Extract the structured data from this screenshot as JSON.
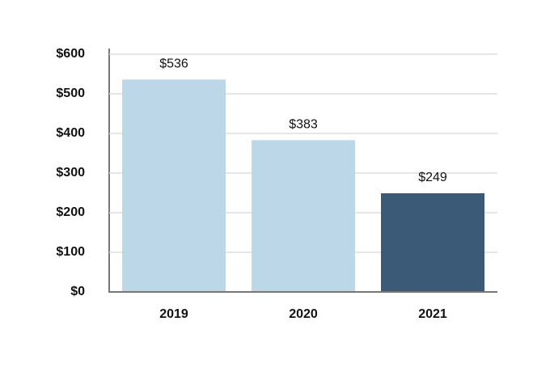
{
  "chart_data": {
    "type": "bar",
    "categories": [
      "2019",
      "2020",
      "2021"
    ],
    "values": [
      536,
      383,
      249
    ],
    "value_labels": [
      "$536",
      "$383",
      "$249"
    ],
    "colors": [
      "#bcd7e8",
      "#bcd7e8",
      "#3b5a78"
    ],
    "ylim": [
      0,
      600
    ],
    "yticks": [
      {
        "value": 0,
        "label": "$0"
      },
      {
        "value": 100,
        "label": "$100"
      },
      {
        "value": 200,
        "label": "$200"
      },
      {
        "value": 300,
        "label": "$300"
      },
      {
        "value": 400,
        "label": "$400"
      },
      {
        "value": 500,
        "label": "$500"
      },
      {
        "value": 600,
        "label": "$600"
      }
    ],
    "grid": true
  }
}
